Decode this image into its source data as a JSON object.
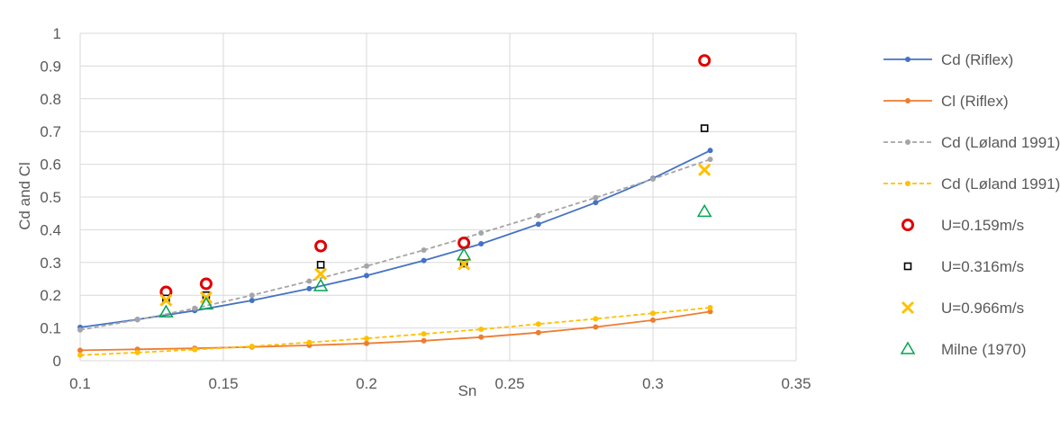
{
  "chart_data": {
    "type": "scatter",
    "title": "",
    "xlabel": "Sn",
    "ylabel": "Cd  and Cl",
    "xlim": [
      0.1,
      0.35
    ],
    "ylim": [
      0,
      1
    ],
    "xticks": [
      0.1,
      0.15,
      0.2,
      0.25,
      0.3,
      0.35
    ],
    "yticks": [
      0,
      0.1,
      0.2,
      0.3,
      0.4,
      0.5,
      0.6,
      0.7,
      0.8,
      0.9,
      1
    ],
    "xtick_labels": [
      "0.1",
      "0.15",
      "0.2",
      "0.25",
      "0.3",
      "0.35"
    ],
    "ytick_labels": [
      "0",
      "0.1",
      "0.2",
      "0.3",
      "0.4",
      "0.5",
      "0.6",
      "0.7",
      "0.8",
      "0.9",
      "1"
    ],
    "grid": true,
    "legend_position": "right",
    "series": [
      {
        "name": "Cd (Riflex)",
        "style": "line-dot",
        "color": "#4472C4",
        "dashed": false,
        "x": [
          0.1,
          0.12,
          0.14,
          0.16,
          0.18,
          0.2,
          0.22,
          0.24,
          0.26,
          0.28,
          0.3,
          0.32
        ],
        "y": [
          0.102,
          0.126,
          0.153,
          0.184,
          0.22,
          0.26,
          0.306,
          0.357,
          0.417,
          0.483,
          0.557,
          0.642
        ]
      },
      {
        "name": "Cl (Riflex)",
        "style": "line-dot",
        "color": "#ED7D31",
        "dashed": false,
        "x": [
          0.1,
          0.12,
          0.14,
          0.16,
          0.18,
          0.2,
          0.22,
          0.24,
          0.26,
          0.28,
          0.3,
          0.32
        ],
        "y": [
          0.032,
          0.035,
          0.038,
          0.042,
          0.047,
          0.053,
          0.061,
          0.072,
          0.086,
          0.103,
          0.124,
          0.15
        ]
      },
      {
        "name": "Cd (Løland 1991)",
        "style": "line-dot",
        "color": "#A5A5A5",
        "dashed": true,
        "x": [
          0.1,
          0.12,
          0.14,
          0.16,
          0.18,
          0.2,
          0.22,
          0.24,
          0.26,
          0.28,
          0.3,
          0.32
        ],
        "y": [
          0.094,
          0.125,
          0.16,
          0.2,
          0.243,
          0.289,
          0.338,
          0.39,
          0.443,
          0.498,
          0.555,
          0.615
        ]
      },
      {
        "name": "Cd (Løland 1991)",
        "style": "line-dot",
        "color": "#FFC000",
        "dashed": true,
        "x": [
          0.1,
          0.12,
          0.14,
          0.16,
          0.18,
          0.2,
          0.22,
          0.24,
          0.26,
          0.28,
          0.3,
          0.32
        ],
        "y": [
          0.017,
          0.025,
          0.034,
          0.044,
          0.056,
          0.068,
          0.082,
          0.096,
          0.112,
          0.128,
          0.145,
          0.162
        ]
      },
      {
        "name": "U=0.159m/s",
        "style": "circle",
        "color": "#E00000",
        "x": [
          0.13,
          0.144,
          0.184,
          0.234,
          0.318
        ],
        "y": [
          0.21,
          0.235,
          0.35,
          0.36,
          0.917
        ]
      },
      {
        "name": "U=0.316m/s",
        "style": "square",
        "color": "#000000",
        "x": [
          0.13,
          0.144,
          0.184,
          0.234,
          0.318
        ],
        "y": [
          0.19,
          0.2,
          0.293,
          0.297,
          0.71
        ]
      },
      {
        "name": "U=0.966m/s",
        "style": "cross",
        "color": "#FFC000",
        "x": [
          0.13,
          0.144,
          0.184,
          0.234,
          0.318
        ],
        "y": [
          0.185,
          0.193,
          0.265,
          0.295,
          0.583
        ]
      },
      {
        "name": "Milne (1970)",
        "style": "triangle",
        "color": "#00A651",
        "x": [
          0.13,
          0.144,
          0.184,
          0.234,
          0.318
        ],
        "y": [
          0.148,
          0.172,
          0.228,
          0.322,
          0.455
        ]
      }
    ]
  }
}
